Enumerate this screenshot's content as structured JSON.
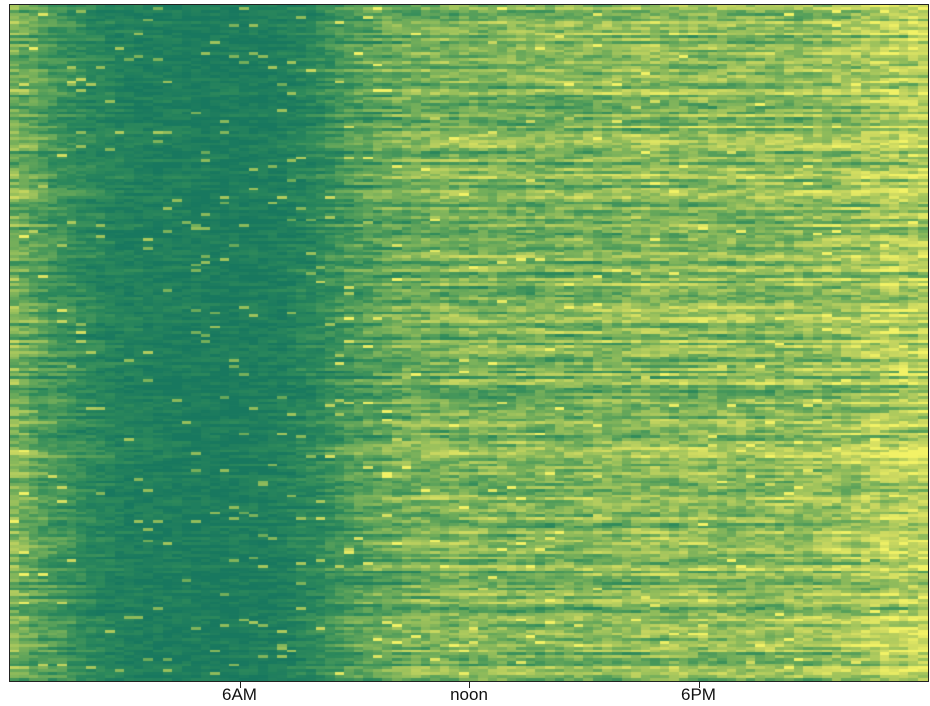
{
  "chart_data": {
    "type": "heatmap",
    "title": "",
    "xlabel": "",
    "ylabel": "",
    "x_range_hours": [
      0,
      24
    ],
    "x_tick_hours": [
      6,
      12,
      18
    ],
    "x_tick_labels": [
      "6AM",
      "noon",
      "6PM"
    ],
    "columns": 96,
    "rows": 240,
    "value_range": [
      0,
      1
    ],
    "colormap": [
      "#18785f",
      "#2e8a5b",
      "#5ba25a",
      "#93bd5b",
      "#c9d760",
      "#f2f266"
    ],
    "grid": false,
    "legend": "none",
    "activity_profile": {
      "hours": [
        0,
        1,
        2,
        3,
        4,
        5,
        6,
        7,
        8,
        9,
        10,
        11,
        12,
        13,
        14,
        15,
        16,
        17,
        18,
        19,
        20,
        21,
        22,
        23,
        24
      ],
      "mean_level": [
        0.55,
        0.33,
        0.18,
        0.1,
        0.07,
        0.05,
        0.05,
        0.07,
        0.18,
        0.35,
        0.45,
        0.5,
        0.52,
        0.52,
        0.52,
        0.53,
        0.55,
        0.58,
        0.58,
        0.57,
        0.58,
        0.6,
        0.65,
        0.72,
        0.75
      ]
    }
  }
}
